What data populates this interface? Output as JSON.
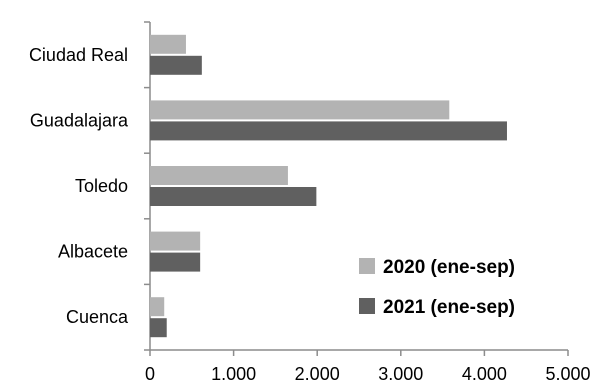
{
  "chart_data": {
    "type": "bar",
    "orientation": "horizontal",
    "categories": [
      "Ciudad Real",
      "Guadalajara",
      "Toledo",
      "Albacete",
      "Cuenca"
    ],
    "series": [
      {
        "name": "2020 (ene-sep)",
        "color": "#b3b3b3",
        "values": [
          430,
          3580,
          1650,
          600,
          170
        ]
      },
      {
        "name": "2021 (ene-sep)",
        "color": "#606060",
        "values": [
          620,
          4270,
          1990,
          600,
          200
        ]
      }
    ],
    "xlim": [
      0,
      5000
    ],
    "xticks": [
      0,
      1000,
      2000,
      3000,
      4000,
      5000
    ],
    "xtick_labels": [
      "0",
      "1.000",
      "2.000",
      "3.000",
      "4.000",
      "5.000"
    ],
    "grid": false,
    "legend_position": "bottom-right inside"
  }
}
